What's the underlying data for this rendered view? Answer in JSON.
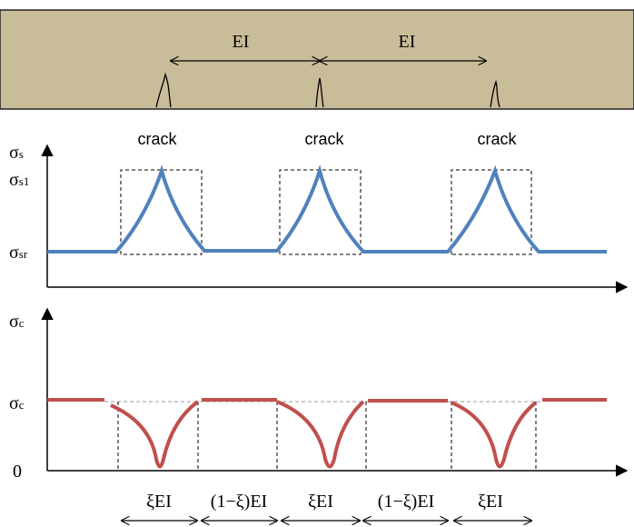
{
  "beam": {
    "spacing_labels": [
      "EI",
      "EI"
    ]
  },
  "crack_labels": [
    "crack",
    "crack",
    "crack"
  ],
  "steel_axis_labels": [
    {
      "symbol": "σ",
      "sub": "s"
    },
    {
      "symbol": "σ",
      "sub": "s1"
    },
    {
      "symbol": "σ",
      "sub": "sr"
    }
  ],
  "concrete_axis_labels": [
    {
      "symbol": "σ",
      "sub": "c"
    },
    {
      "symbol": "σ",
      "sub": "c"
    },
    {
      "symbol": "0"
    }
  ],
  "segment_labels": [
    "ξEI",
    "(1−ξ)EI",
    "ξEI",
    "(1−ξ)EI",
    "ξEI"
  ]
}
